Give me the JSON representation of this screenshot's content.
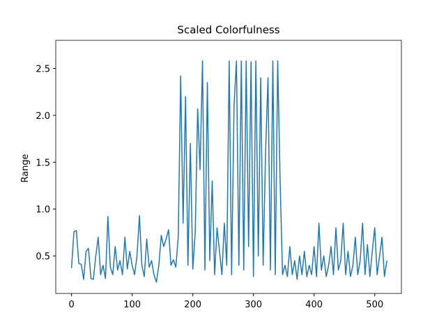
{
  "chart_data": {
    "type": "line",
    "title": "Scaled Colorfulness",
    "y_label": "Range",
    "x": [
      0,
      4,
      8,
      12,
      16,
      20,
      24,
      28,
      32,
      36,
      40,
      44,
      48,
      52,
      56,
      60,
      64,
      68,
      72,
      76,
      80,
      84,
      88,
      92,
      96,
      100,
      104,
      108,
      112,
      116,
      120,
      124,
      128,
      132,
      136,
      140,
      144,
      148,
      152,
      156,
      160,
      164,
      168,
      172,
      176,
      180,
      184,
      188,
      192,
      196,
      200,
      204,
      208,
      212,
      216,
      220,
      224,
      228,
      232,
      236,
      240,
      244,
      248,
      252,
      256,
      260,
      264,
      268,
      272,
      276,
      280,
      284,
      288,
      292,
      296,
      300,
      304,
      308,
      312,
      316,
      320,
      324,
      328,
      332,
      336,
      340,
      344,
      348,
      352,
      356,
      360,
      364,
      368,
      372,
      376,
      380,
      384,
      388,
      392,
      396,
      400,
      404,
      408,
      412,
      416,
      420,
      424,
      428,
      432,
      436,
      440,
      444,
      448,
      452,
      456,
      460,
      464,
      468,
      472,
      476,
      480,
      484,
      488,
      492,
      496,
      500,
      504,
      508,
      512,
      516,
      520
    ],
    "series": [
      {
        "name": "Range",
        "color": "#1f77b4",
        "values": [
          0.37,
          0.76,
          0.77,
          0.42,
          0.41,
          0.25,
          0.55,
          0.58,
          0.26,
          0.25,
          0.5,
          0.7,
          0.3,
          0.4,
          0.26,
          0.92,
          0.38,
          0.3,
          0.6,
          0.35,
          0.45,
          0.3,
          0.7,
          0.36,
          0.55,
          0.4,
          0.3,
          0.5,
          0.93,
          0.4,
          0.28,
          0.68,
          0.38,
          0.45,
          0.3,
          0.22,
          0.4,
          0.72,
          0.6,
          0.68,
          0.78,
          0.4,
          0.46,
          0.38,
          0.7,
          2.42,
          0.85,
          2.2,
          0.4,
          1.7,
          0.36,
          0.75,
          2.07,
          1.42,
          2.58,
          0.35,
          2.35,
          0.45,
          1.3,
          0.3,
          0.8,
          0.55,
          0.3,
          0.85,
          0.4,
          2.58,
          0.3,
          2.1,
          2.58,
          0.4,
          2.58,
          0.35,
          2.58,
          0.6,
          2.57,
          0.28,
          2.58,
          0.5,
          2.4,
          0.4,
          1.6,
          2.4,
          0.35,
          2.58,
          0.3,
          2.58,
          1.3,
          0.3,
          0.4,
          0.28,
          0.6,
          0.3,
          0.45,
          0.25,
          0.5,
          0.3,
          0.55,
          0.28,
          0.4,
          0.3,
          0.6,
          0.28,
          0.85,
          0.35,
          0.5,
          0.28,
          0.4,
          0.6,
          0.3,
          0.8,
          0.35,
          0.45,
          0.85,
          0.3,
          0.55,
          0.28,
          0.4,
          0.7,
          0.3,
          0.45,
          0.85,
          0.3,
          0.62,
          0.28,
          0.55,
          0.8,
          0.3,
          0.5,
          0.7,
          0.28,
          0.45
        ]
      }
    ],
    "xlim": [
      -26,
      544
    ],
    "ylim": [
      0.1,
      2.8
    ],
    "xticks": [
      0,
      100,
      200,
      300,
      400,
      500
    ],
    "yticks": [
      0.5,
      {
        "value": 1,
        "label": "1.0"
      },
      1.5,
      {
        "value": 2,
        "label": "2.0"
      },
      2.5
    ]
  }
}
